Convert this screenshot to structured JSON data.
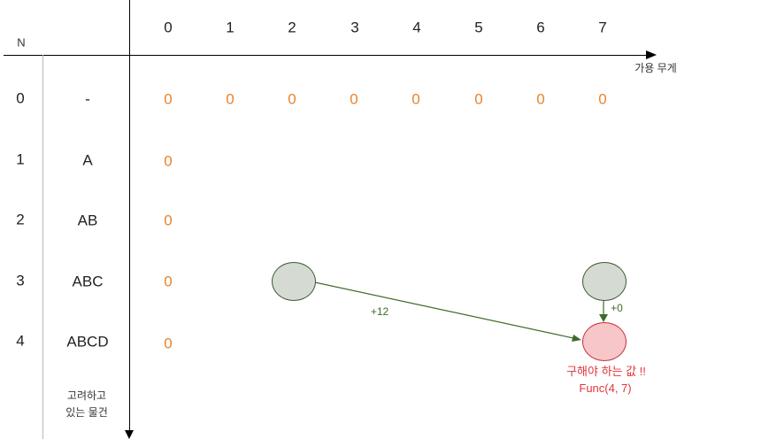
{
  "n_label": "N",
  "axis_label": "가용 무게",
  "items_caption": [
    "고려하고",
    "있는 물건"
  ],
  "columns": [
    "0",
    "1",
    "2",
    "3",
    "4",
    "5",
    "6",
    "7"
  ],
  "rows": [
    {
      "n": "0",
      "item": "-"
    },
    {
      "n": "1",
      "item": "A"
    },
    {
      "n": "2",
      "item": "AB"
    },
    {
      "n": "3",
      "item": "ABC"
    },
    {
      "n": "4",
      "item": "ABCD"
    }
  ],
  "zero_value": "0",
  "arrows": {
    "diagonal_label": "+12",
    "vertical_label": "+0"
  },
  "target": {
    "line1": "구해야 하는 값 !!",
    "line2": "Func(4, 7)"
  },
  "colors": {
    "zero": "#e8842a",
    "node_fill": "#d5dbd2",
    "node_stroke": "#3e5a33",
    "target_fill": "#f6c6c9",
    "target_stroke": "#c8303a",
    "target_text": "#e0353a",
    "arrow": "#3d6b2a"
  }
}
